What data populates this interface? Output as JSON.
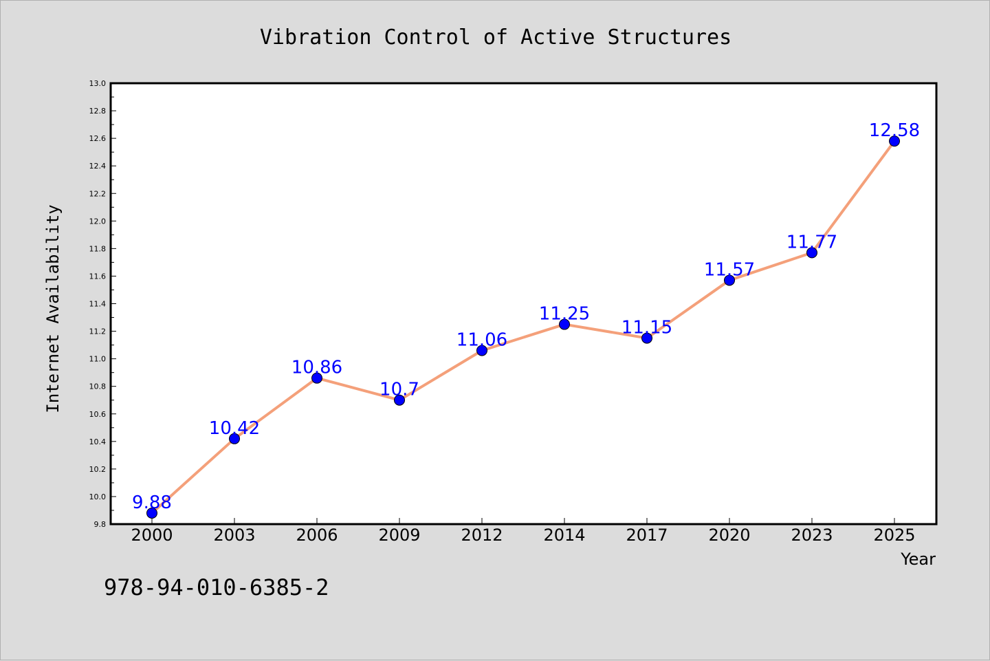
{
  "chart_data": {
    "type": "line",
    "title": "Vibration Control of Active Structures",
    "xlabel": "Year",
    "ylabel": "Internet Availability",
    "categories": [
      "2000",
      "2003",
      "2006",
      "2009",
      "2012",
      "2014",
      "2017",
      "2020",
      "2023",
      "2025"
    ],
    "series": [
      {
        "values": [
          9.88,
          10.42,
          10.86,
          10.7,
          11.06,
          11.25,
          11.15,
          11.57,
          11.77,
          12.58
        ],
        "labels": [
          "9.88",
          "10.42",
          "10.86",
          "10.7",
          "11.06",
          "11.25",
          "11.15",
          "11.57",
          "11.77",
          "12.58"
        ],
        "line_color": "#f4a07a",
        "marker_color": "#0000ff"
      }
    ],
    "ylim": [
      9.8,
      13.0
    ],
    "yticks": [
      "9.8",
      "10.0",
      "10.2",
      "10.4",
      "10.6",
      "10.8",
      "11.0",
      "11.2",
      "11.4",
      "11.6",
      "11.8",
      "12.0",
      "12.2",
      "12.4",
      "12.6",
      "12.8",
      "13.0"
    ],
    "grid": false,
    "data_label_color": "#0000ff"
  },
  "footer": {
    "code": "978-94-010-6385-2"
  }
}
